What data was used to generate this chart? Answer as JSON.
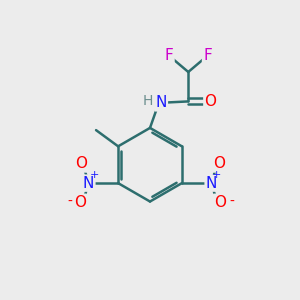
{
  "background_color": "#ececec",
  "atom_colors": {
    "C": "#2d6e6e",
    "H": "#6b8e8e",
    "N": "#1a1aff",
    "O": "#ff0000",
    "F": "#cc00cc"
  },
  "bond_color": "#2d6e6e",
  "figsize": [
    3.0,
    3.0
  ],
  "dpi": 100
}
